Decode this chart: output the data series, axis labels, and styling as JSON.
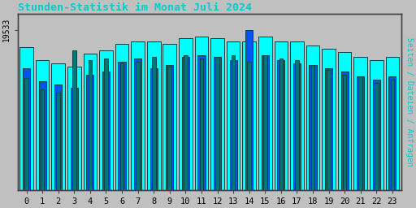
{
  "title": "Stunden-Statistik im Monat Juli 2024",
  "title_color": "#00CCCC",
  "ylabel_right": "Seiten / Dateien / Anfragen",
  "ylabel_right_color": "#00CCCC",
  "background_color": "#C0C0C0",
  "plot_bg_color": "#C0C0C0",
  "hours": [
    0,
    1,
    2,
    3,
    4,
    5,
    6,
    7,
    8,
    9,
    10,
    11,
    12,
    13,
    14,
    15,
    16,
    17,
    18,
    19,
    20,
    21,
    22,
    23
  ],
  "cyan_values": [
    89,
    81,
    79,
    77,
    85,
    87,
    91,
    93,
    93,
    91,
    95,
    96,
    95,
    93,
    93,
    96,
    93,
    93,
    90,
    88,
    86,
    83,
    81,
    83
  ],
  "blue_values": [
    76,
    68,
    66,
    64,
    72,
    74,
    80,
    82,
    76,
    78,
    83,
    84,
    83,
    81,
    100,
    84,
    81,
    79,
    78,
    76,
    74,
    71,
    69,
    71
  ],
  "teal_values": [
    70,
    63,
    61,
    87,
    81,
    82,
    79,
    80,
    83,
    77,
    84,
    82,
    83,
    84,
    80,
    84,
    82,
    81,
    78,
    75,
    72,
    71,
    67,
    69
  ],
  "bar_color_cyan": "#00FFFF",
  "bar_color_blue": "#0055EE",
  "bar_color_teal": "#007777",
  "bar_edge_color": "#004444",
  "ylim": [
    0,
    110
  ],
  "ytick_label": "19533",
  "ytick_pos": 100
}
